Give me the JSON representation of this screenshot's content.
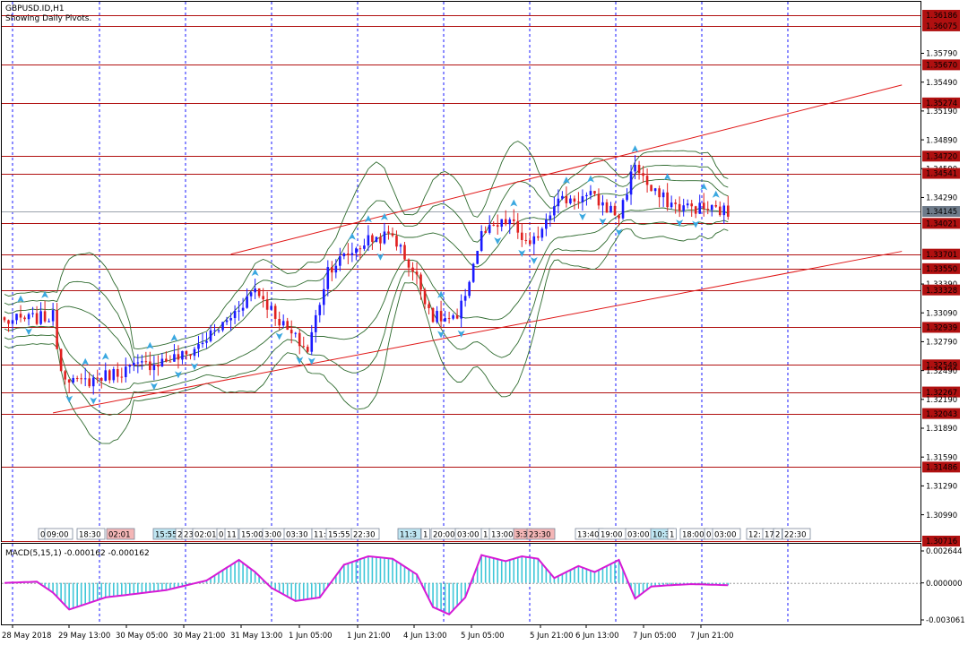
{
  "header": {
    "symbol": "GBPUSD.ID,H1",
    "subtitle": "Showing Daily Pivots."
  },
  "colors": {
    "background": "#ffffff",
    "pivot_line": "#b01010",
    "trend_line": "#e01818",
    "grid": "#1a1aff",
    "bollinger": "#2f6b2f",
    "bull_candle": "#1a1aff",
    "bear_candle": "#e02020",
    "macd_hist": "#3fc7d8",
    "macd_signal": "#d61ad6",
    "arrow": "#3aa8e0",
    "price_tag": "#b01010",
    "current_tag": "#6e7b8a"
  },
  "chart_data": [
    {
      "type": "candlestick",
      "title": "GBPUSD.ID,H1",
      "subtitle": "Showing Daily Pivots.",
      "ylim": [
        1.307,
        1.3625
      ],
      "y_ticks": [
        "1.36186",
        "1.36075",
        "1.35790",
        "1.35670",
        "1.35490",
        "1.35274",
        "1.35190",
        "1.34890",
        "1.34720",
        "1.34590",
        "1.34541",
        "1.34290",
        "1.34145",
        "1.34021",
        "1.33701",
        "1.33550",
        "1.33390",
        "1.33328",
        "1.33090",
        "1.32939",
        "1.32790",
        "1.32549",
        "1.32490",
        "1.32267",
        "1.32190",
        "1.32043",
        "1.31890",
        "1.31590",
        "1.31486",
        "1.31290",
        "1.30990",
        "1.30716"
      ],
      "pivot_levels": [
        "1.36186",
        "1.36075",
        "1.35670",
        "1.35274",
        "1.34720",
        "1.34541",
        "1.34021",
        "1.33701",
        "1.33550",
        "1.33328",
        "1.32939",
        "1.32549",
        "1.32267",
        "1.32043",
        "1.31486",
        "1.30716"
      ],
      "current_price": "1.34145",
      "x_labels": [
        "28 May 2018",
        "29 May 13:00",
        "30 May 05:00",
        "30 May 21:00",
        "31 May 13:00",
        "1 Jun 05:00",
        "1 Jun 21:00",
        "4 Jun 13:00",
        "5 Jun 05:00",
        "5 Jun 21:00",
        "6 Jun 13:00",
        "7 Jun 05:00",
        "7 Jun 21:00"
      ],
      "bar_count": 180,
      "close_path": [
        [
          0,
          1.33
        ],
        [
          12,
          1.3305
        ],
        [
          14,
          1.325
        ],
        [
          18,
          1.3235
        ],
        [
          30,
          1.325
        ],
        [
          45,
          1.3265
        ],
        [
          55,
          1.33
        ],
        [
          62,
          1.3335
        ],
        [
          70,
          1.329
        ],
        [
          75,
          1.327
        ],
        [
          80,
          1.3355
        ],
        [
          90,
          1.3385
        ],
        [
          96,
          1.339
        ],
        [
          102,
          1.3345
        ],
        [
          106,
          1.3305
        ],
        [
          112,
          1.33
        ],
        [
          118,
          1.339
        ],
        [
          125,
          1.3405
        ],
        [
          130,
          1.3375
        ],
        [
          136,
          1.3425
        ],
        [
          145,
          1.343
        ],
        [
          152,
          1.341
        ],
        [
          156,
          1.3465
        ],
        [
          160,
          1.3435
        ],
        [
          166,
          1.342
        ],
        [
          172,
          1.3418
        ],
        [
          178,
          1.3415
        ],
        [
          180,
          1.3408
        ]
      ],
      "trend_lines": [
        {
          "from": [
            56,
            1.337
          ],
          "to": [
            222,
            1.3546
          ]
        },
        {
          "from": [
            12,
            1.3205
          ],
          "to": [
            222,
            1.3373
          ]
        }
      ],
      "time_marks": [
        "0",
        "09:00",
        "18:30",
        "02:01",
        "15:55",
        "2",
        "23",
        "02:01",
        "0",
        "11",
        "15:00",
        "3:00",
        "03:30",
        "11:",
        "15:55",
        "22:30",
        "11:3",
        "1",
        "20:00",
        "03:00",
        "1",
        "13:00",
        "3:3",
        "23:30",
        "13:40",
        "19:00",
        "03:00",
        "10:3",
        "1",
        "18:00",
        "0",
        "03:00",
        "12:",
        "17",
        "2",
        "22:30"
      ]
    },
    {
      "type": "line",
      "title": "MACD(5,15,1) -0.000162 -0.000162",
      "ylim": [
        -0.0032,
        0.0028
      ],
      "y_ticks": [
        "0.002644",
        "0.000000",
        "-0.003061"
      ],
      "x": [
        0,
        8,
        12,
        16,
        25,
        40,
        50,
        58,
        62,
        66,
        72,
        78,
        84,
        90,
        96,
        102,
        106,
        110,
        114,
        118,
        124,
        128,
        132,
        136,
        142,
        146,
        152,
        156,
        160,
        164,
        170,
        180
      ],
      "series": [
        {
          "values": [
            0.0,
            0.0001,
            -0.0008,
            -0.0022,
            -0.0012,
            -0.0006,
            0.0002,
            0.0019,
            0.0009,
            -0.0004,
            -0.0015,
            -0.0012,
            0.0015,
            0.0022,
            0.002,
            0.0007,
            -0.002,
            -0.0026,
            -0.0012,
            0.0023,
            0.0018,
            0.0022,
            0.002,
            0.0004,
            0.0014,
            0.0009,
            0.0019,
            -0.0013,
            -0.0003,
            -0.0002,
            -0.0001,
            -0.0002
          ]
        }
      ]
    }
  ]
}
